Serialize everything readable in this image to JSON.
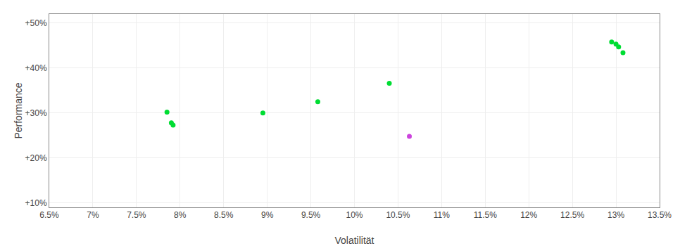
{
  "chart_data": {
    "type": "scatter",
    "xlabel": "Volatilität",
    "ylabel": "Performance",
    "xlim": [
      0.065,
      0.135
    ],
    "ylim": [
      0.09,
      0.52
    ],
    "xticks": [
      {
        "value": 0.065,
        "label": "6.5%"
      },
      {
        "value": 0.07,
        "label": "7%"
      },
      {
        "value": 0.075,
        "label": "7.5%"
      },
      {
        "value": 0.08,
        "label": "8%"
      },
      {
        "value": 0.085,
        "label": "8.5%"
      },
      {
        "value": 0.09,
        "label": "9%"
      },
      {
        "value": 0.095,
        "label": "9.5%"
      },
      {
        "value": 0.1,
        "label": "10%"
      },
      {
        "value": 0.105,
        "label": "10.5%"
      },
      {
        "value": 0.11,
        "label": "11%"
      },
      {
        "value": 0.115,
        "label": "11.5%"
      },
      {
        "value": 0.12,
        "label": "12%"
      },
      {
        "value": 0.125,
        "label": "12.5%"
      },
      {
        "value": 0.13,
        "label": "13%"
      },
      {
        "value": 0.135,
        "label": "13.5%"
      }
    ],
    "yticks": [
      {
        "value": 0.1,
        "label": "+10%"
      },
      {
        "value": 0.2,
        "label": "+20%"
      },
      {
        "value": 0.3,
        "label": "+30%"
      },
      {
        "value": 0.4,
        "label": "+40%"
      },
      {
        "value": 0.5,
        "label": "+50%"
      }
    ],
    "grid": true,
    "series": [
      {
        "color": "#00dd33",
        "x": [
          0.0785,
          0.079,
          0.0792,
          0.0895,
          0.0958,
          0.104,
          0.1295,
          0.13,
          0.1303,
          0.1308
        ],
        "values": [
          0.302,
          0.278,
          0.273,
          0.3,
          0.325,
          0.366,
          0.458,
          0.453,
          0.447,
          0.434
        ]
      },
      {
        "color": "#cc44dd",
        "x": [
          0.1063
        ],
        "values": [
          0.248
        ]
      }
    ]
  }
}
